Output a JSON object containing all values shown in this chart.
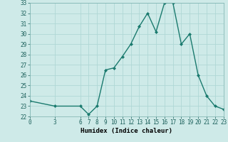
{
  "x": [
    0,
    3,
    6,
    7,
    8,
    9,
    10,
    11,
    12,
    13,
    14,
    15,
    16,
    17,
    18,
    19,
    20,
    21,
    22,
    23
  ],
  "y": [
    23.5,
    23.0,
    23.0,
    22.2,
    23.0,
    26.5,
    26.7,
    27.8,
    29.0,
    30.7,
    32.0,
    30.2,
    33.0,
    33.0,
    29.0,
    30.0,
    26.0,
    24.0,
    23.0,
    22.7
  ],
  "line_color": "#1a7a6e",
  "marker": "D",
  "marker_size": 2.0,
  "bg_color": "#ceeae8",
  "grid_color": "#afd8d5",
  "xlabel": "Humidex (Indice chaleur)",
  "ylabel": "",
  "xlim": [
    0,
    23
  ],
  "ylim": [
    22,
    33
  ],
  "yticks": [
    22,
    23,
    24,
    25,
    26,
    27,
    28,
    29,
    30,
    31,
    32,
    33
  ],
  "xticks": [
    0,
    3,
    6,
    7,
    8,
    9,
    10,
    11,
    12,
    13,
    14,
    15,
    16,
    17,
    18,
    19,
    20,
    21,
    22,
    23
  ],
  "tick_fontsize": 5.5,
  "xlabel_fontsize": 6.5,
  "line_width": 1.0
}
